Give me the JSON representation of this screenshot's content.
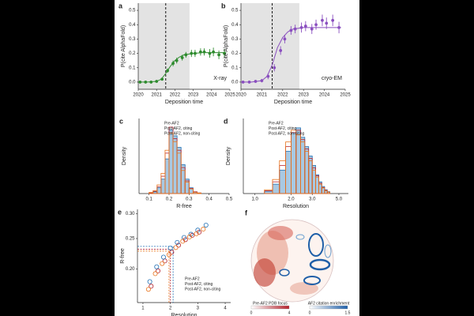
{
  "chart_data": [
    {
      "type": "line",
      "label": "a",
      "xlabel": "Deposition time",
      "ylabel": "P(cite AlphaFold)",
      "annotation": "X-ray",
      "color": "#2e8b2e",
      "x": [
        2020.1,
        2020.4,
        2020.7,
        2021.0,
        2021.3,
        2021.6,
        2021.9,
        2022.1,
        2022.4,
        2022.6,
        2022.9,
        2023.1,
        2023.4,
        2023.6,
        2023.9,
        2024.1,
        2024.4,
        2024.7
      ],
      "values": [
        0.0,
        0.0,
        0.0,
        0.005,
        0.02,
        0.08,
        0.13,
        0.15,
        0.17,
        0.19,
        0.2,
        0.2,
        0.21,
        0.21,
        0.2,
        0.21,
        0.19,
        0.2
      ],
      "errors": [
        0.005,
        0.005,
        0.005,
        0.008,
        0.01,
        0.015,
        0.02,
        0.02,
        0.02,
        0.02,
        0.025,
        0.025,
        0.025,
        0.025,
        0.03,
        0.03,
        0.03,
        0.03
      ],
      "fit": {
        "x": [
          2020,
          2020.5,
          2021,
          2021.25,
          2021.5,
          2021.75,
          2022,
          2022.25,
          2022.5,
          2023,
          2023.5,
          2024,
          2024.8
        ],
        "values": [
          0,
          0,
          0.005,
          0.02,
          0.06,
          0.11,
          0.15,
          0.175,
          0.19,
          0.2,
          0.205,
          0.205,
          0.205
        ]
      },
      "shade": [
        2020,
        2022.8
      ],
      "marker_line": 2021.5,
      "xlim": [
        2020,
        2025
      ],
      "ylim": [
        -0.05,
        0.55
      ],
      "xticks": [
        2020,
        2021,
        2022,
        2023,
        2024,
        2025
      ],
      "yticks": [
        {
          "value": 0,
          "label": "0.0"
        },
        0.1,
        0.2,
        0.3,
        0.4,
        0.5
      ]
    },
    {
      "type": "line",
      "label": "b",
      "xlabel": "Deposition time",
      "ylabel": "P(cite AlphaFold)",
      "annotation": "cryo-EM",
      "color": "#8a4fbf",
      "x": [
        2020.1,
        2020.4,
        2020.7,
        2021.0,
        2021.3,
        2021.6,
        2021.9,
        2022.1,
        2022.4,
        2022.6,
        2022.9,
        2023.1,
        2023.4,
        2023.6,
        2023.9,
        2024.1,
        2024.4,
        2024.7
      ],
      "values": [
        0.0,
        0.0,
        0.005,
        0.01,
        0.04,
        0.1,
        0.22,
        0.3,
        0.36,
        0.37,
        0.38,
        0.39,
        0.37,
        0.4,
        0.43,
        0.41,
        0.43,
        0.38
      ],
      "errors": [
        0.008,
        0.008,
        0.01,
        0.012,
        0.02,
        0.025,
        0.03,
        0.03,
        0.03,
        0.03,
        0.035,
        0.035,
        0.035,
        0.035,
        0.04,
        0.04,
        0.04,
        0.04
      ],
      "fit": {
        "x": [
          2020,
          2020.5,
          2021,
          2021.25,
          2021.5,
          2021.75,
          2022,
          2022.25,
          2022.5,
          2023,
          2023.5,
          2024,
          2024.8
        ],
        "values": [
          0,
          0,
          0.01,
          0.04,
          0.12,
          0.24,
          0.31,
          0.35,
          0.37,
          0.38,
          0.38,
          0.38,
          0.38
        ]
      },
      "shade": [
        2020,
        2022.8
      ],
      "marker_line": 2021.5,
      "xlim": [
        2020,
        2025
      ],
      "ylim": [
        -0.05,
        0.55
      ],
      "xticks": [
        2020,
        2021,
        2022,
        2023,
        2024,
        2025
      ],
      "yticks": [
        {
          "value": 0,
          "label": "0.0"
        },
        0.1,
        0.2,
        0.3,
        0.4,
        0.5
      ]
    },
    {
      "type": "histogram",
      "label": "c",
      "xlabel": "R-free",
      "ylabel": "Density",
      "bins": [
        0.1,
        0.12,
        0.14,
        0.16,
        0.18,
        0.2,
        0.22,
        0.24,
        0.26,
        0.28,
        0.3,
        0.32,
        0.34,
        0.36
      ],
      "series": [
        {
          "name": "Post-AF2, citing",
          "color": "#1f6fb4",
          "fill": "#9ec3e0",
          "values": [
            0.1,
            0.3,
            1.0,
            2.5,
            6.0,
            11.0,
            10.0,
            8.0,
            5.0,
            2.5,
            1.0,
            0.3,
            0.1
          ]
        },
        {
          "name": "Pre-AF2",
          "color": "#b5232e",
          "values": [
            0.1,
            0.4,
            1.2,
            3.0,
            7.0,
            11.5,
            9.5,
            7.5,
            4.5,
            2.2,
            0.9,
            0.3,
            0.1
          ]
        },
        {
          "name": "Post-AF2, non-citing",
          "color": "#e8731c",
          "values": [
            0.2,
            0.5,
            1.5,
            3.5,
            7.5,
            10.5,
            9.0,
            7.0,
            4.0,
            2.0,
            0.8,
            0.2,
            0.1
          ]
        }
      ],
      "legend_order": [
        1,
        0,
        2
      ],
      "xlim": [
        0.05,
        0.5
      ],
      "ylim": [
        0,
        13
      ],
      "xticks": [
        0.1,
        0.2,
        0.3,
        0.4,
        0.5
      ]
    },
    {
      "type": "histogram",
      "label": "d",
      "xlabel": "Resolution",
      "ylabel": "Density",
      "log_x": true,
      "bins": [
        1.2,
        1.4,
        1.6,
        1.8,
        2.0,
        2.2,
        2.4,
        2.6,
        2.8,
        3.0,
        3.2,
        3.4,
        3.6,
        3.8,
        4.0,
        4.2
      ],
      "series": [
        {
          "name": "Post-AF2, citing",
          "color": "#1f6fb4",
          "fill": "#9ec3e0",
          "values": [
            0.05,
            0.2,
            0.5,
            0.9,
            1.3,
            1.4,
            1.2,
            1.0,
            0.8,
            0.6,
            0.4,
            0.25,
            0.15,
            0.08,
            0.04
          ]
        },
        {
          "name": "Pre-AF2",
          "color": "#b5232e",
          "values": [
            0.06,
            0.25,
            0.6,
            1.0,
            1.3,
            1.35,
            1.15,
            0.95,
            0.75,
            0.55,
            0.38,
            0.22,
            0.13,
            0.07,
            0.03
          ]
        },
        {
          "name": "Post-AF2, non-citing",
          "color": "#e8731c",
          "values": [
            0.08,
            0.3,
            0.7,
            1.1,
            1.35,
            1.25,
            1.1,
            0.9,
            0.7,
            0.5,
            0.35,
            0.2,
            0.12,
            0.06,
            0.03
          ]
        }
      ],
      "legend_order": [
        1,
        0,
        2
      ],
      "xlim": [
        0.8,
        6
      ],
      "ylim": [
        0,
        1.6
      ],
      "xticks": [
        {
          "value": 1,
          "label": "1.0"
        },
        {
          "value": 2,
          "label": "2.0"
        },
        {
          "value": 3,
          "label": "3.0"
        },
        {
          "value": 5,
          "label": "5.0"
        }
      ]
    },
    {
      "type": "scatter",
      "label": "e",
      "xlabel": "Resolution",
      "ylabel": "R-free",
      "log_y": true,
      "series": [
        {
          "name": "Pre-AF2",
          "color": "#b5232e",
          "x": [
            1.3,
            1.55,
            1.8,
            2.05,
            2.3,
            2.55,
            2.8,
            3.05
          ],
          "values": [
            0.176,
            0.197,
            0.212,
            0.226,
            0.238,
            0.248,
            0.256,
            0.262
          ]
        },
        {
          "name": "Post-AF2, citing",
          "color": "#1f6fb4",
          "x": [
            1.25,
            1.5,
            1.75,
            2.0,
            2.25,
            2.5,
            2.75,
            3.0,
            3.3
          ],
          "values": [
            0.182,
            0.203,
            0.218,
            0.233,
            0.243,
            0.252,
            0.258,
            0.266,
            0.276
          ]
        },
        {
          "name": "Post-AF2, non-citing",
          "color": "#e8731c",
          "x": [
            1.2,
            1.45,
            1.7,
            1.95,
            2.2,
            2.45,
            2.7,
            2.95,
            3.2
          ],
          "values": [
            0.172,
            0.193,
            0.208,
            0.222,
            0.234,
            0.245,
            0.253,
            0.259,
            0.268
          ]
        }
      ],
      "reference_lines": [
        {
          "color": "#1f6fb4",
          "x": 2.1,
          "y": 0.236
        },
        {
          "color": "#b5232e",
          "x": 2.0,
          "y": 0.231
        },
        {
          "color": "#e8731c",
          "x": 1.95,
          "y": 0.228
        }
      ],
      "xlim": [
        0.8,
        4.2
      ],
      "ylim": [
        0.156,
        0.31
      ],
      "xticks": [
        1,
        2,
        3,
        4
      ],
      "yticks": [
        {
          "value": 0.2,
          "label": "0.20"
        },
        0.25,
        {
          "value": 0.3,
          "label": "0.30"
        }
      ]
    },
    {
      "type": "map",
      "label": "f",
      "colorbars": [
        {
          "label": "Pre-AF2 PDB focus",
          "colors": [
            "#ffffff",
            "#b5232e"
          ],
          "ticks": [
            0,
            4
          ]
        },
        {
          "label": "AF2 citation enrichment",
          "colors": [
            "#ffffff",
            "#1f5fa8"
          ],
          "ticks": [
            0,
            1.5
          ]
        }
      ]
    }
  ]
}
